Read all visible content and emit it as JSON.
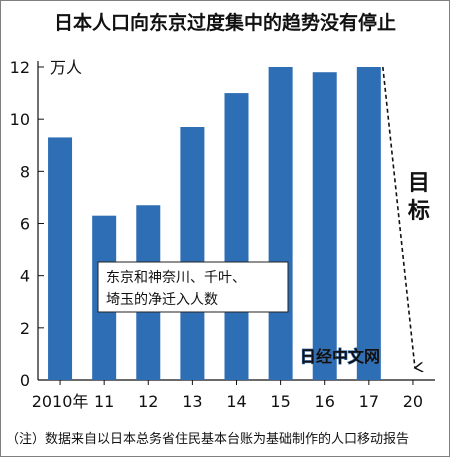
{
  "title": "日本人口向东京过度集中的趋势没有停止",
  "note": "（注）数据来自以日本总务省住民基本台账为基础制作的人口移动报告",
  "watermark": "日经中文网",
  "accent_color": "#2e6eb5",
  "chart_data": {
    "type": "bar",
    "title": "日本人口向东京过度集中的趋势没有停止",
    "categories": [
      "2010年",
      "11",
      "12",
      "13",
      "14",
      "15",
      "16",
      "17",
      "20"
    ],
    "values": [
      9.3,
      6.3,
      6.7,
      9.7,
      11.0,
      12.0,
      11.8,
      12.0,
      null
    ],
    "unit": "万人",
    "ylim": [
      0,
      12
    ],
    "yticks": [
      0,
      2,
      4,
      6,
      8,
      10,
      12
    ],
    "xlabel": "",
    "ylabel": "",
    "grid": false,
    "legend": "东京和神奈川、千叶、埼玉的净迁入人数",
    "legend_lines": [
      "东京和神奈川、千叶、埼玉的净迁入人数"
    ],
    "legend_position": "center",
    "target_label": "目标",
    "target_value": 0,
    "target_category": "20"
  }
}
